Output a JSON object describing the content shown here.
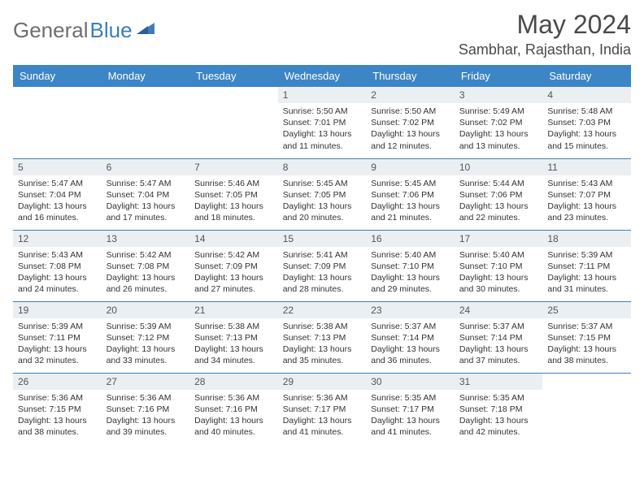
{
  "brand": {
    "part1": "General",
    "part2": "Blue"
  },
  "title": "May 2024",
  "location": "Sambhar, Rajasthan, India",
  "colors": {
    "header_bg": "#3c85c6",
    "row_divider": "#3c7dbf",
    "daynum_bg": "#eceff1",
    "text": "#333333",
    "title_text": "#4a4a4a",
    "brand_gray": "#6e6e6e",
    "brand_blue": "#3c7dbf",
    "page_bg": "#ffffff"
  },
  "day_names": [
    "Sunday",
    "Monday",
    "Tuesday",
    "Wednesday",
    "Thursday",
    "Friday",
    "Saturday"
  ],
  "weeks": [
    [
      {
        "n": "",
        "sr": "",
        "ss": "",
        "dl": ""
      },
      {
        "n": "",
        "sr": "",
        "ss": "",
        "dl": ""
      },
      {
        "n": "",
        "sr": "",
        "ss": "",
        "dl": ""
      },
      {
        "n": "1",
        "sr": "5:50 AM",
        "ss": "7:01 PM",
        "dl": "13 hours and 11 minutes."
      },
      {
        "n": "2",
        "sr": "5:50 AM",
        "ss": "7:02 PM",
        "dl": "13 hours and 12 minutes."
      },
      {
        "n": "3",
        "sr": "5:49 AM",
        "ss": "7:02 PM",
        "dl": "13 hours and 13 minutes."
      },
      {
        "n": "4",
        "sr": "5:48 AM",
        "ss": "7:03 PM",
        "dl": "13 hours and 15 minutes."
      }
    ],
    [
      {
        "n": "5",
        "sr": "5:47 AM",
        "ss": "7:04 PM",
        "dl": "13 hours and 16 minutes."
      },
      {
        "n": "6",
        "sr": "5:47 AM",
        "ss": "7:04 PM",
        "dl": "13 hours and 17 minutes."
      },
      {
        "n": "7",
        "sr": "5:46 AM",
        "ss": "7:05 PM",
        "dl": "13 hours and 18 minutes."
      },
      {
        "n": "8",
        "sr": "5:45 AM",
        "ss": "7:05 PM",
        "dl": "13 hours and 20 minutes."
      },
      {
        "n": "9",
        "sr": "5:45 AM",
        "ss": "7:06 PM",
        "dl": "13 hours and 21 minutes."
      },
      {
        "n": "10",
        "sr": "5:44 AM",
        "ss": "7:06 PM",
        "dl": "13 hours and 22 minutes."
      },
      {
        "n": "11",
        "sr": "5:43 AM",
        "ss": "7:07 PM",
        "dl": "13 hours and 23 minutes."
      }
    ],
    [
      {
        "n": "12",
        "sr": "5:43 AM",
        "ss": "7:08 PM",
        "dl": "13 hours and 24 minutes."
      },
      {
        "n": "13",
        "sr": "5:42 AM",
        "ss": "7:08 PM",
        "dl": "13 hours and 26 minutes."
      },
      {
        "n": "14",
        "sr": "5:42 AM",
        "ss": "7:09 PM",
        "dl": "13 hours and 27 minutes."
      },
      {
        "n": "15",
        "sr": "5:41 AM",
        "ss": "7:09 PM",
        "dl": "13 hours and 28 minutes."
      },
      {
        "n": "16",
        "sr": "5:40 AM",
        "ss": "7:10 PM",
        "dl": "13 hours and 29 minutes."
      },
      {
        "n": "17",
        "sr": "5:40 AM",
        "ss": "7:10 PM",
        "dl": "13 hours and 30 minutes."
      },
      {
        "n": "18",
        "sr": "5:39 AM",
        "ss": "7:11 PM",
        "dl": "13 hours and 31 minutes."
      }
    ],
    [
      {
        "n": "19",
        "sr": "5:39 AM",
        "ss": "7:11 PM",
        "dl": "13 hours and 32 minutes."
      },
      {
        "n": "20",
        "sr": "5:39 AM",
        "ss": "7:12 PM",
        "dl": "13 hours and 33 minutes."
      },
      {
        "n": "21",
        "sr": "5:38 AM",
        "ss": "7:13 PM",
        "dl": "13 hours and 34 minutes."
      },
      {
        "n": "22",
        "sr": "5:38 AM",
        "ss": "7:13 PM",
        "dl": "13 hours and 35 minutes."
      },
      {
        "n": "23",
        "sr": "5:37 AM",
        "ss": "7:14 PM",
        "dl": "13 hours and 36 minutes."
      },
      {
        "n": "24",
        "sr": "5:37 AM",
        "ss": "7:14 PM",
        "dl": "13 hours and 37 minutes."
      },
      {
        "n": "25",
        "sr": "5:37 AM",
        "ss": "7:15 PM",
        "dl": "13 hours and 38 minutes."
      }
    ],
    [
      {
        "n": "26",
        "sr": "5:36 AM",
        "ss": "7:15 PM",
        "dl": "13 hours and 38 minutes."
      },
      {
        "n": "27",
        "sr": "5:36 AM",
        "ss": "7:16 PM",
        "dl": "13 hours and 39 minutes."
      },
      {
        "n": "28",
        "sr": "5:36 AM",
        "ss": "7:16 PM",
        "dl": "13 hours and 40 minutes."
      },
      {
        "n": "29",
        "sr": "5:36 AM",
        "ss": "7:17 PM",
        "dl": "13 hours and 41 minutes."
      },
      {
        "n": "30",
        "sr": "5:35 AM",
        "ss": "7:17 PM",
        "dl": "13 hours and 41 minutes."
      },
      {
        "n": "31",
        "sr": "5:35 AM",
        "ss": "7:18 PM",
        "dl": "13 hours and 42 minutes."
      },
      {
        "n": "",
        "sr": "",
        "ss": "",
        "dl": ""
      }
    ]
  ],
  "labels": {
    "sunrise": "Sunrise:",
    "sunset": "Sunset:",
    "daylight": "Daylight:"
  }
}
